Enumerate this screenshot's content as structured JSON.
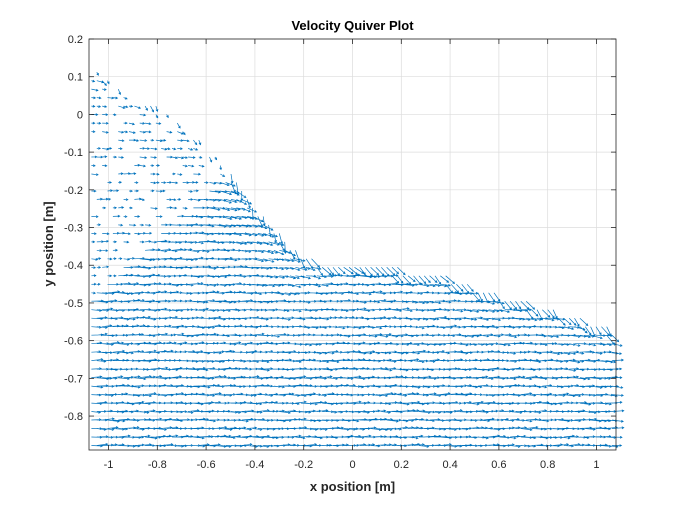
{
  "chart_data": {
    "type": "quiver",
    "title": "Velocity Quiver Plot",
    "xlabel": "x position [m]",
    "ylabel": "y position [m]",
    "xlim": [
      -1.08,
      1.08
    ],
    "ylim": [
      -0.89,
      0.2
    ],
    "grid": true,
    "x_ticks": [
      -1,
      -0.8,
      -0.6,
      -0.4,
      -0.2,
      0,
      0.2,
      0.4,
      0.6,
      0.8,
      1
    ],
    "x_tick_labels": [
      "-1",
      "-0.8",
      "-0.6",
      "-0.4",
      "-0.2",
      "0",
      "0.2",
      "0.4",
      "0.6",
      "0.8",
      "1"
    ],
    "y_ticks": [
      0.2,
      0.1,
      0,
      -0.1,
      -0.2,
      -0.3,
      -0.4,
      -0.5,
      -0.6,
      -0.7,
      -0.8
    ],
    "y_tick_labels": [
      "0.2",
      "0.1",
      "0",
      "-0.1",
      "-0.2",
      "-0.3",
      "-0.4",
      "-0.5",
      "-0.6",
      "-0.7",
      "-0.8"
    ],
    "vector_color": "#0072BD",
    "field": {
      "grid_dx": 0.022,
      "grid_dy": 0.0225,
      "upper_boundary": [
        [
          -1.08,
          0.135
        ],
        [
          -0.95,
          0.08
        ],
        [
          -0.8,
          0.02
        ],
        [
          -0.65,
          -0.05
        ],
        [
          -0.55,
          -0.11
        ],
        [
          -0.45,
          -0.2
        ],
        [
          -0.35,
          -0.28
        ],
        [
          -0.25,
          -0.35
        ],
        [
          -0.15,
          -0.385
        ],
        [
          0.0,
          -0.395
        ],
        [
          0.2,
          -0.405
        ],
        [
          0.4,
          -0.43
        ],
        [
          0.6,
          -0.475
        ],
        [
          0.8,
          -0.51
        ],
        [
          1.0,
          -0.555
        ],
        [
          1.08,
          -0.57
        ]
      ],
      "sparse_region_boundary": [
        [
          -1.08,
          -0.48
        ],
        [
          -1.0,
          -0.44
        ],
        [
          -0.85,
          -0.35
        ],
        [
          -0.7,
          -0.27
        ],
        [
          -0.6,
          -0.2
        ],
        [
          -0.5,
          -0.15
        ],
        [
          -0.45,
          -0.12
        ]
      ]
    }
  }
}
